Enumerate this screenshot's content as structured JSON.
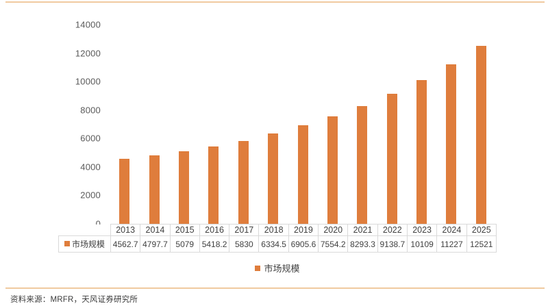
{
  "chart_data": {
    "type": "bar",
    "categories": [
      "2013",
      "2014",
      "2015",
      "2016",
      "2017",
      "2018",
      "2019",
      "2020",
      "2021",
      "2022",
      "2023",
      "2024",
      "2025"
    ],
    "series": [
      {
        "name": "市场规模",
        "values": [
          4562.7,
          4797.7,
          5079,
          5418.2,
          5830,
          6334.5,
          6905.6,
          7554.2,
          8293.3,
          9138.7,
          10109,
          11227,
          12521
        ]
      }
    ],
    "value_labels": [
      "4562.7",
      "4797.7",
      "5079",
      "5418.2",
      "5830",
      "6334.5",
      "6905.6",
      "7554.2",
      "8293.3",
      "9138.7",
      "10109",
      "11227",
      "12521"
    ],
    "title": "",
    "xlabel": "",
    "ylabel": "",
    "ylim": [
      0,
      14000
    ],
    "y_ticks": [
      0,
      2000,
      4000,
      6000,
      8000,
      10000,
      12000,
      14000
    ],
    "grid": false,
    "legend_position": "bottom",
    "data_table_shown": true
  },
  "legend": {
    "label": "市场规模"
  },
  "table": {
    "row_label": "市场规模"
  },
  "footer": {
    "source": "资料来源：MRFR，天风证券研究所"
  },
  "colors": {
    "bar": "#df7d3c",
    "rule": "#f0ca9f",
    "table_border": "#d9d9d9",
    "axis_text": "#595959",
    "body_text": "#404040"
  }
}
